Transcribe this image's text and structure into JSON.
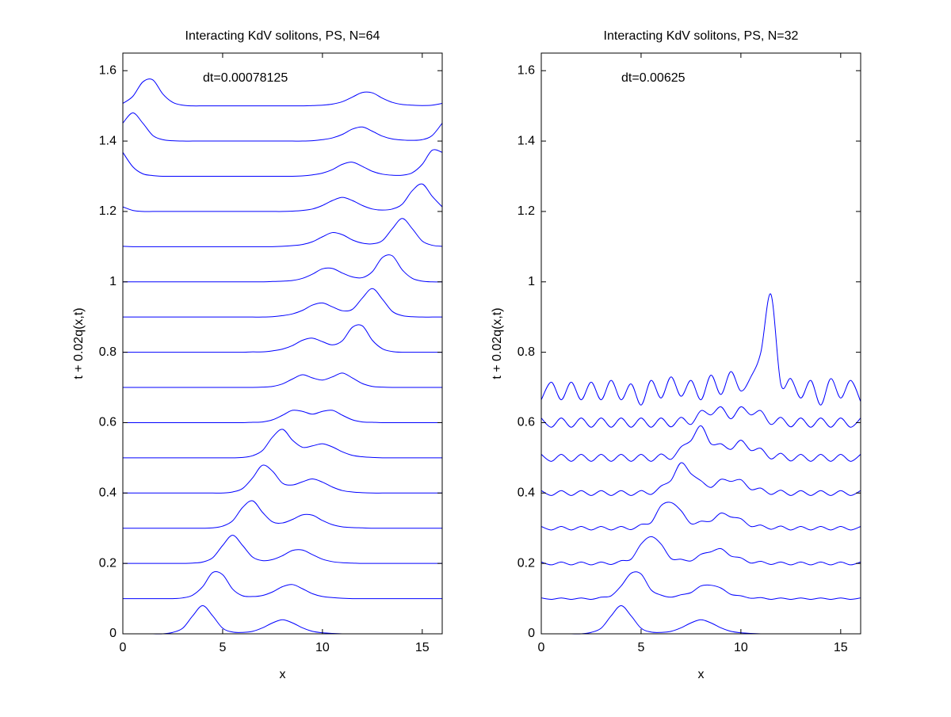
{
  "chart_data": [
    {
      "type": "line",
      "title": "Interacting KdV solitons, PS, N=64",
      "annotation": "dt=0.00078125",
      "xlabel": "x",
      "ylabel": "t + 0.02q(x,t)",
      "xlim": [
        0,
        16
      ],
      "xticks": [
        0,
        5,
        10,
        15
      ],
      "ylim": [
        0,
        1.65
      ],
      "yticks": [
        0,
        0.2,
        0.4,
        0.6,
        0.8,
        1,
        1.2,
        1.4,
        1.6
      ],
      "grid": false,
      "x": [
        0,
        0.5,
        1,
        1.5,
        2,
        2.5,
        3,
        3.5,
        4,
        4.5,
        5,
        5.5,
        6,
        6.5,
        7,
        7.5,
        8,
        8.5,
        9,
        9.5,
        10,
        10.5,
        11,
        11.5,
        12,
        12.5,
        13,
        13.5,
        14,
        14.5,
        15,
        15.5,
        16
      ],
      "series": [
        {
          "color": "#0000ff",
          "values": [
            0,
            0,
            0,
            0,
            0,
            0.004,
            0.016,
            0.051,
            0.08,
            0.051,
            0.016,
            0.005,
            0.004,
            0.007,
            0.017,
            0.031,
            0.04,
            0.031,
            0.017,
            0.007,
            0.003,
            0.001,
            0,
            0,
            0,
            0,
            0,
            0,
            0,
            0,
            0,
            0,
            0
          ]
        },
        {
          "color": "#0000ff",
          "values": [
            0.1,
            0.1,
            0.1,
            0.1,
            0.1,
            0.1,
            0.102,
            0.11,
            0.134,
            0.174,
            0.168,
            0.127,
            0.108,
            0.106,
            0.109,
            0.119,
            0.134,
            0.14,
            0.128,
            0.114,
            0.106,
            0.103,
            0.101,
            0.1,
            0.1,
            0.1,
            0.1,
            0.1,
            0.1,
            0.1,
            0.1,
            0.1,
            0.1
          ]
        },
        {
          "color": "#0000ff",
          "values": [
            0.2,
            0.2,
            0.2,
            0.2,
            0.2,
            0.2,
            0.2,
            0.201,
            0.204,
            0.216,
            0.251,
            0.28,
            0.251,
            0.218,
            0.208,
            0.211,
            0.222,
            0.237,
            0.238,
            0.225,
            0.212,
            0.205,
            0.202,
            0.201,
            0.2,
            0.2,
            0.2,
            0.2,
            0.2,
            0.2,
            0.2,
            0.2,
            0.2
          ]
        },
        {
          "color": "#0000ff",
          "values": [
            0.3,
            0.3,
            0.3,
            0.3,
            0.3,
            0.3,
            0.3,
            0.3,
            0.3,
            0.301,
            0.306,
            0.321,
            0.359,
            0.378,
            0.345,
            0.318,
            0.315,
            0.325,
            0.338,
            0.337,
            0.322,
            0.31,
            0.304,
            0.302,
            0.301,
            0.3,
            0.3,
            0.3,
            0.3,
            0.3,
            0.3,
            0.3,
            0.3
          ]
        },
        {
          "color": "#0000ff",
          "values": [
            0.4,
            0.4,
            0.4,
            0.4,
            0.4,
            0.4,
            0.4,
            0.4,
            0.4,
            0.4,
            0.4,
            0.403,
            0.413,
            0.443,
            0.479,
            0.462,
            0.428,
            0.423,
            0.432,
            0.44,
            0.431,
            0.417,
            0.407,
            0.403,
            0.401,
            0.4,
            0.4,
            0.4,
            0.4,
            0.4,
            0.4,
            0.4,
            0.4
          ]
        },
        {
          "color": "#0000ff",
          "values": [
            0.5,
            0.5,
            0.5,
            0.5,
            0.5,
            0.5,
            0.5,
            0.5,
            0.5,
            0.5,
            0.5,
            0.5,
            0.501,
            0.506,
            0.521,
            0.559,
            0.581,
            0.55,
            0.53,
            0.534,
            0.54,
            0.531,
            0.517,
            0.507,
            0.503,
            0.501,
            0.5,
            0.5,
            0.5,
            0.5,
            0.5,
            0.5,
            0.5
          ]
        },
        {
          "color": "#0000ff",
          "values": [
            0.6,
            0.6,
            0.6,
            0.6,
            0.6,
            0.6,
            0.6,
            0.6,
            0.6,
            0.6,
            0.6,
            0.6,
            0.6,
            0.601,
            0.602,
            0.608,
            0.621,
            0.635,
            0.632,
            0.624,
            0.632,
            0.635,
            0.621,
            0.608,
            0.602,
            0.601,
            0.6,
            0.6,
            0.6,
            0.6,
            0.6,
            0.6,
            0.6
          ]
        },
        {
          "color": "#0000ff",
          "values": [
            0.7,
            0.7,
            0.7,
            0.7,
            0.7,
            0.7,
            0.7,
            0.7,
            0.7,
            0.7,
            0.7,
            0.7,
            0.7,
            0.7,
            0.701,
            0.703,
            0.71,
            0.724,
            0.736,
            0.727,
            0.721,
            0.73,
            0.741,
            0.727,
            0.711,
            0.703,
            0.701,
            0.7,
            0.7,
            0.7,
            0.7,
            0.7,
            0.7
          ]
        },
        {
          "color": "#0000ff",
          "values": [
            0.8,
            0.8,
            0.8,
            0.8,
            0.8,
            0.8,
            0.8,
            0.8,
            0.8,
            0.8,
            0.8,
            0.8,
            0.8,
            0.801,
            0.801,
            0.804,
            0.809,
            0.819,
            0.834,
            0.84,
            0.83,
            0.821,
            0.833,
            0.871,
            0.875,
            0.834,
            0.81,
            0.802,
            0.8,
            0.8,
            0.8,
            0.8,
            0.8
          ]
        },
        {
          "color": "#0000ff",
          "values": [
            0.9,
            0.9,
            0.9,
            0.9,
            0.9,
            0.9,
            0.9,
            0.9,
            0.9,
            0.9,
            0.9,
            0.9,
            0.9,
            0.9,
            0.9,
            0.901,
            0.904,
            0.909,
            0.919,
            0.934,
            0.94,
            0.929,
            0.918,
            0.922,
            0.954,
            0.981,
            0.951,
            0.916,
            0.904,
            0.901,
            0.9,
            0.9,
            0.9
          ]
        },
        {
          "color": "#0000ff",
          "values": [
            1,
            1,
            1,
            1,
            1,
            1,
            1,
            1,
            1,
            1,
            1,
            1,
            1,
            1,
            1,
            1.001,
            1.002,
            1.004,
            1.01,
            1.022,
            1.037,
            1.038,
            1.025,
            1.014,
            1.012,
            1.029,
            1.069,
            1.074,
            1.034,
            1.01,
            1.002,
            1,
            1
          ]
        },
        {
          "color": "#0000ff",
          "values": [
            1.101,
            1.1,
            1.1,
            1.1,
            1.1,
            1.1,
            1.1,
            1.1,
            1.1,
            1.1,
            1.1,
            1.1,
            1.1,
            1.1,
            1.1,
            1.1,
            1.101,
            1.103,
            1.106,
            1.114,
            1.128,
            1.14,
            1.134,
            1.119,
            1.11,
            1.108,
            1.117,
            1.151,
            1.18,
            1.151,
            1.116,
            1.104,
            1.101
          ]
        },
        {
          "color": "#0000ff",
          "values": [
            1.213,
            1.203,
            1.2,
            1.2,
            1.2,
            1.2,
            1.2,
            1.2,
            1.2,
            1.2,
            1.2,
            1.2,
            1.2,
            1.2,
            1.2,
            1.2,
            1.2,
            1.201,
            1.203,
            1.207,
            1.217,
            1.231,
            1.24,
            1.231,
            1.217,
            1.207,
            1.204,
            1.207,
            1.221,
            1.259,
            1.278,
            1.243,
            1.213
          ]
        },
        {
          "color": "#0000ff",
          "values": [
            1.368,
            1.327,
            1.307,
            1.302,
            1.3,
            1.3,
            1.3,
            1.3,
            1.3,
            1.3,
            1.3,
            1.3,
            1.3,
            1.3,
            1.3,
            1.3,
            1.3,
            1.3,
            1.301,
            1.304,
            1.309,
            1.319,
            1.334,
            1.34,
            1.328,
            1.314,
            1.306,
            1.303,
            1.303,
            1.31,
            1.334,
            1.374,
            1.368
          ]
        },
        {
          "color": "#0000ff",
          "values": [
            1.451,
            1.48,
            1.451,
            1.416,
            1.404,
            1.401,
            1.4,
            1.4,
            1.4,
            1.4,
            1.4,
            1.4,
            1.4,
            1.4,
            1.4,
            1.4,
            1.4,
            1.4,
            1.4,
            1.401,
            1.404,
            1.409,
            1.419,
            1.434,
            1.44,
            1.428,
            1.414,
            1.406,
            1.403,
            1.402,
            1.404,
            1.416,
            1.451
          ]
        },
        {
          "color": "#0000ff",
          "values": [
            1.507,
            1.527,
            1.568,
            1.574,
            1.534,
            1.51,
            1.502,
            1.5,
            1.5,
            1.5,
            1.5,
            1.5,
            1.5,
            1.5,
            1.5,
            1.5,
            1.5,
            1.5,
            1.5,
            1.501,
            1.502,
            1.505,
            1.512,
            1.525,
            1.538,
            1.537,
            1.522,
            1.51,
            1.504,
            1.502,
            1.501,
            1.502,
            1.507
          ]
        }
      ]
    },
    {
      "type": "line",
      "title": "Interacting KdV solitons, PS, N=32",
      "annotation": "dt=0.00625",
      "xlabel": "x",
      "ylabel": "t + 0.02q(x,t)",
      "xlim": [
        0,
        16
      ],
      "xticks": [
        0,
        5,
        10,
        15
      ],
      "ylim": [
        0,
        1.65
      ],
      "yticks": [
        0,
        0.2,
        0.4,
        0.6,
        0.8,
        1,
        1.2,
        1.4,
        1.6
      ],
      "grid": false,
      "x": [
        0,
        0.5,
        1,
        1.5,
        2,
        2.5,
        3,
        3.5,
        4,
        4.5,
        5,
        5.5,
        6,
        6.5,
        7,
        7.5,
        8,
        8.5,
        9,
        9.5,
        10,
        10.5,
        11,
        11.5,
        12,
        12.5,
        13,
        13.5,
        14,
        14.5,
        15,
        15.5,
        16
      ],
      "series": [
        {
          "color": "#0000ff",
          "values": [
            0,
            0,
            0,
            0,
            0,
            0.004,
            0.016,
            0.051,
            0.08,
            0.051,
            0.016,
            0.005,
            0.004,
            0.007,
            0.017,
            0.031,
            0.04,
            0.031,
            0.017,
            0.007,
            0.003,
            0.001,
            0,
            0,
            0,
            0,
            0,
            0,
            0,
            0,
            0,
            0,
            0
          ]
        },
        {
          "color": "#0000ff",
          "values": [
            0.102,
            0.098,
            0.102,
            0.098,
            0.102,
            0.098,
            0.104,
            0.108,
            0.136,
            0.172,
            0.17,
            0.125,
            0.11,
            0.104,
            0.111,
            0.117,
            0.136,
            0.138,
            0.13,
            0.112,
            0.108,
            0.101,
            0.103,
            0.098,
            0.102,
            0.098,
            0.102,
            0.098,
            0.102,
            0.098,
            0.102,
            0.098,
            0.102
          ]
        },
        {
          "color": "#0000ff",
          "values": [
            0.204,
            0.196,
            0.204,
            0.196,
            0.204,
            0.196,
            0.204,
            0.197,
            0.208,
            0.212,
            0.255,
            0.276,
            0.255,
            0.214,
            0.212,
            0.207,
            0.226,
            0.233,
            0.242,
            0.221,
            0.216,
            0.201,
            0.206,
            0.197,
            0.204,
            0.196,
            0.204,
            0.196,
            0.204,
            0.196,
            0.204,
            0.196,
            0.204
          ]
        },
        {
          "color": "#0000ff",
          "values": [
            0.305,
            0.295,
            0.305,
            0.295,
            0.305,
            0.295,
            0.305,
            0.295,
            0.305,
            0.296,
            0.311,
            0.316,
            0.364,
            0.373,
            0.35,
            0.313,
            0.32,
            0.32,
            0.343,
            0.332,
            0.327,
            0.305,
            0.309,
            0.297,
            0.306,
            0.295,
            0.305,
            0.295,
            0.305,
            0.295,
            0.305,
            0.295,
            0.305
          ]
        },
        {
          "color": "#0000ff",
          "values": [
            0.407,
            0.393,
            0.407,
            0.393,
            0.407,
            0.393,
            0.407,
            0.393,
            0.407,
            0.393,
            0.407,
            0.396,
            0.42,
            0.436,
            0.486,
            0.455,
            0.435,
            0.416,
            0.439,
            0.433,
            0.438,
            0.41,
            0.414,
            0.396,
            0.408,
            0.393,
            0.407,
            0.393,
            0.407,
            0.393,
            0.407,
            0.393,
            0.407
          ]
        },
        {
          "color": "#0000ff",
          "values": [
            0.51,
            0.49,
            0.51,
            0.49,
            0.51,
            0.49,
            0.51,
            0.49,
            0.51,
            0.49,
            0.51,
            0.49,
            0.511,
            0.496,
            0.531,
            0.549,
            0.591,
            0.54,
            0.54,
            0.524,
            0.55,
            0.521,
            0.527,
            0.497,
            0.513,
            0.491,
            0.51,
            0.49,
            0.51,
            0.49,
            0.51,
            0.49,
            0.51
          ]
        },
        {
          "color": "#0000ff",
          "values": [
            0.613,
            0.587,
            0.613,
            0.587,
            0.613,
            0.587,
            0.613,
            0.587,
            0.613,
            0.587,
            0.613,
            0.587,
            0.613,
            0.588,
            0.615,
            0.595,
            0.634,
            0.622,
            0.645,
            0.611,
            0.645,
            0.622,
            0.634,
            0.595,
            0.615,
            0.588,
            0.613,
            0.587,
            0.613,
            0.587,
            0.613,
            0.587,
            0.613
          ]
        },
        {
          "color": "#0000ff",
          "values": [
            0.665,
            0.715,
            0.665,
            0.715,
            0.665,
            0.715,
            0.665,
            0.72,
            0.665,
            0.71,
            0.65,
            0.72,
            0.67,
            0.73,
            0.675,
            0.72,
            0.665,
            0.735,
            0.68,
            0.745,
            0.69,
            0.73,
            0.8,
            0.965,
            0.71,
            0.725,
            0.67,
            0.72,
            0.65,
            0.725,
            0.67,
            0.72,
            0.66
          ]
        }
      ]
    }
  ]
}
